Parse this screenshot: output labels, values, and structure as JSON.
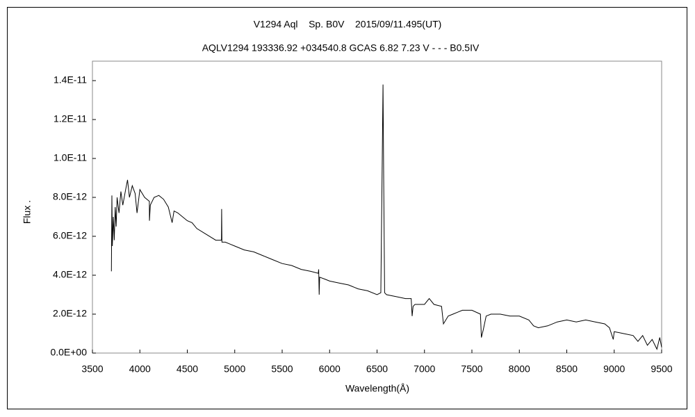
{
  "chart_data": {
    "type": "line",
    "title": "V1294 Aql    Sp. B0V    2015/09/11.495(UT)",
    "subtitle": "AQLV1294 193336.92 +034540.8 GCAS 6.82 7.23 V - - - B0.5IV",
    "x_label": "Wavelength(Å)",
    "y_label": "Flux .",
    "color": "#000000",
    "xlim": [
      3500,
      9500
    ],
    "xticks": [
      3500,
      4000,
      4500,
      5000,
      5500,
      6000,
      6500,
      7000,
      7500,
      8000,
      8500,
      9000,
      9500
    ],
    "ylim": [
      0,
      1.5e-11
    ],
    "yticks": [
      {
        "value": 0,
        "label": "0.0E+00"
      },
      {
        "value": 2e-12,
        "label": "2.0E-12"
      },
      {
        "value": 4e-12,
        "label": "4.0E-12"
      },
      {
        "value": 6e-12,
        "label": "6.0E-12"
      },
      {
        "value": 8e-12,
        "label": "8.0E-12"
      },
      {
        "value": 1e-11,
        "label": "1.0E-11"
      },
      {
        "value": 1.2e-11,
        "label": "1.2E-11"
      },
      {
        "value": 1.4e-11,
        "label": "1.4E-11"
      }
    ],
    "x": [
      3700,
      3705,
      3710,
      3720,
      3730,
      3740,
      3750,
      3760,
      3780,
      3800,
      3820,
      3850,
      3870,
      3890,
      3920,
      3950,
      3970,
      4000,
      4050,
      4100,
      4101,
      4110,
      4150,
      4200,
      4250,
      4300,
      4340,
      4360,
      4400,
      4450,
      4500,
      4550,
      4600,
      4700,
      4800,
      4860,
      4862,
      4865,
      4900,
      4950,
      5000,
      5100,
      5200,
      5300,
      5400,
      5500,
      5600,
      5700,
      5800,
      5880,
      5885,
      5890,
      5895,
      5950,
      6000,
      6100,
      6200,
      6300,
      6400,
      6500,
      6540,
      6555,
      6563,
      6570,
      6580,
      6600,
      6700,
      6800,
      6860,
      6870,
      6880,
      6900,
      7000,
      7050,
      7100,
      7180,
      7200,
      7250,
      7300,
      7350,
      7400,
      7500,
      7590,
      7600,
      7620,
      7650,
      7700,
      7800,
      7900,
      8000,
      8100,
      8150,
      8200,
      8300,
      8400,
      8500,
      8600,
      8700,
      8800,
      8900,
      8950,
      8990,
      9000,
      9100,
      9200,
      9250,
      9300,
      9350,
      9400,
      9450,
      9480,
      9500
    ],
    "values": [
      4.2e-12,
      8.1e-12,
      5.5e-12,
      7e-12,
      5.8e-12,
      7.5e-12,
      6.5e-12,
      8e-12,
      7.2e-12,
      8.3e-12,
      7.6e-12,
      8.4e-12,
      8.9e-12,
      8e-12,
      8.6e-12,
      8.2e-12,
      7.2e-12,
      8.4e-12,
      8e-12,
      7.8e-12,
      6.8e-12,
      7.6e-12,
      8e-12,
      8.1e-12,
      7.9e-12,
      7.5e-12,
      6.7e-12,
      7.3e-12,
      7.2e-12,
      7e-12,
      6.8e-12,
      6.7e-12,
      6.4e-12,
      6.1e-12,
      5.8e-12,
      5.8e-12,
      7.4e-12,
      5.7e-12,
      5.7e-12,
      5.6e-12,
      5.5e-12,
      5.3e-12,
      5.2e-12,
      5e-12,
      4.8e-12,
      4.6e-12,
      4.5e-12,
      4.3e-12,
      4.2e-12,
      4.1e-12,
      4.3e-12,
      3e-12,
      3.9e-12,
      3.8e-12,
      3.7e-12,
      3.6e-12,
      3.5e-12,
      3.3e-12,
      3.2e-12,
      3e-12,
      3.1e-12,
      1e-11,
      1.38e-11,
      9e-12,
      3.1e-12,
      3e-12,
      2.9e-12,
      2.8e-12,
      2.8e-12,
      1.9e-12,
      2.4e-12,
      2.5e-12,
      2.5e-12,
      2.8e-12,
      2.5e-12,
      2.4e-12,
      1.5e-12,
      1.9e-12,
      2e-12,
      2.1e-12,
      2.2e-12,
      2.2e-12,
      2e-12,
      8e-13,
      1.2e-12,
      1.9e-12,
      2e-12,
      2e-12,
      1.9e-12,
      1.9e-12,
      1.7e-12,
      1.4e-12,
      1.3e-12,
      1.4e-12,
      1.6e-12,
      1.7e-12,
      1.6e-12,
      1.7e-12,
      1.6e-12,
      1.5e-12,
      1.3e-12,
      7e-13,
      1.1e-12,
      1e-12,
      9e-13,
      6e-13,
      9e-13,
      4e-13,
      7e-13,
      2e-13,
      8e-13,
      3e-13
    ]
  }
}
